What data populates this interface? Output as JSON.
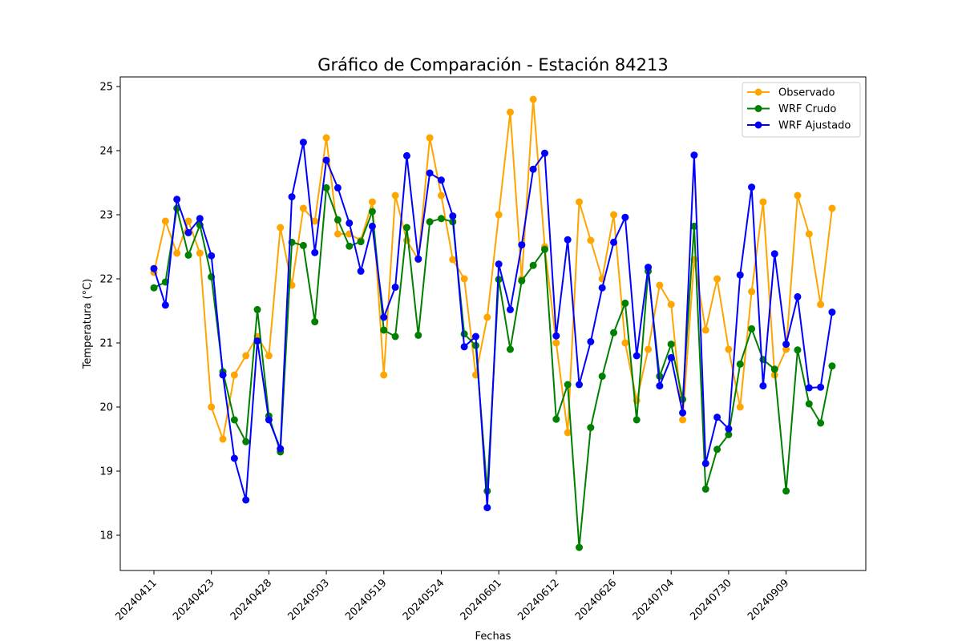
{
  "chart_data": {
    "type": "line",
    "title": "Gráfico de Comparación - Estación 84213",
    "xlabel": "Fechas",
    "ylabel": "Temperatura (°C)",
    "ylim": [
      17.45,
      25.15
    ],
    "y_ticks": [
      "18",
      "19",
      "20",
      "21",
      "22",
      "23",
      "24",
      "25"
    ],
    "y_tick_values": [
      18,
      19,
      20,
      21,
      22,
      23,
      24,
      25
    ],
    "x_tick_labels": [
      "20240411",
      "20240423",
      "20240428",
      "20240503",
      "20240519",
      "20240524",
      "20240601",
      "20240612",
      "20240626",
      "20240704",
      "20240730",
      "20240909"
    ],
    "x_tick_every": 5,
    "grid": false,
    "legend_position": "upper right",
    "series": [
      {
        "name": "Observado",
        "color": "#ffa500",
        "values": [
          22.1,
          22.9,
          22.4,
          22.9,
          22.4,
          20.0,
          19.5,
          20.5,
          20.8,
          21.1,
          20.8,
          22.8,
          21.9,
          23.1,
          22.9,
          24.2,
          22.7,
          22.7,
          22.6,
          23.2,
          20.5,
          23.3,
          22.6,
          22.3,
          24.2,
          23.3,
          22.3,
          22.0,
          20.5,
          21.4,
          23.0,
          24.6,
          22.0,
          24.8,
          22.5,
          21.0,
          19.6,
          23.2,
          22.6,
          22.0,
          23.0,
          21.0,
          20.1,
          20.9,
          21.9,
          21.6,
          19.8,
          22.3,
          21.2,
          22.0,
          20.9,
          20.0,
          21.8,
          23.2,
          20.5,
          20.9,
          23.3,
          22.7,
          21.6,
          23.1
        ]
      },
      {
        "name": "WRF Crudo",
        "color": "#008000",
        "values": [
          21.86,
          21.95,
          23.1,
          22.37,
          22.84,
          22.03,
          20.55,
          19.8,
          19.46,
          21.52,
          19.86,
          19.3,
          22.57,
          22.52,
          21.33,
          23.42,
          22.92,
          22.51,
          22.58,
          23.05,
          21.2,
          21.1,
          22.8,
          21.12,
          22.89,
          22.94,
          22.89,
          21.14,
          20.96,
          18.69,
          21.99,
          20.9,
          21.97,
          22.21,
          22.46,
          19.81,
          20.35,
          17.81,
          19.68,
          20.48,
          21.16,
          21.62,
          19.8,
          22.12,
          20.48,
          20.98,
          20.12,
          22.82,
          18.72,
          19.34,
          19.57,
          20.67,
          21.22,
          20.74,
          20.59,
          18.69,
          20.89,
          20.05,
          19.75,
          20.64
        ]
      },
      {
        "name": "WRF Ajustado",
        "color": "#0000ff",
        "values": [
          22.16,
          21.59,
          23.24,
          22.72,
          22.94,
          22.36,
          20.5,
          19.2,
          18.55,
          21.03,
          19.8,
          19.35,
          23.28,
          24.13,
          22.41,
          23.85,
          23.42,
          22.87,
          22.12,
          22.82,
          21.4,
          21.87,
          23.92,
          22.31,
          23.65,
          23.54,
          22.98,
          20.94,
          21.1,
          18.43,
          22.23,
          21.52,
          22.53,
          23.71,
          23.96,
          21.11,
          22.61,
          20.35,
          21.02,
          21.86,
          22.57,
          22.96,
          20.8,
          22.18,
          20.33,
          20.77,
          19.91,
          23.93,
          19.12,
          19.84,
          19.66,
          22.06,
          23.43,
          20.33,
          22.39,
          20.98,
          21.72,
          20.3,
          20.31,
          21.48
        ]
      }
    ]
  }
}
